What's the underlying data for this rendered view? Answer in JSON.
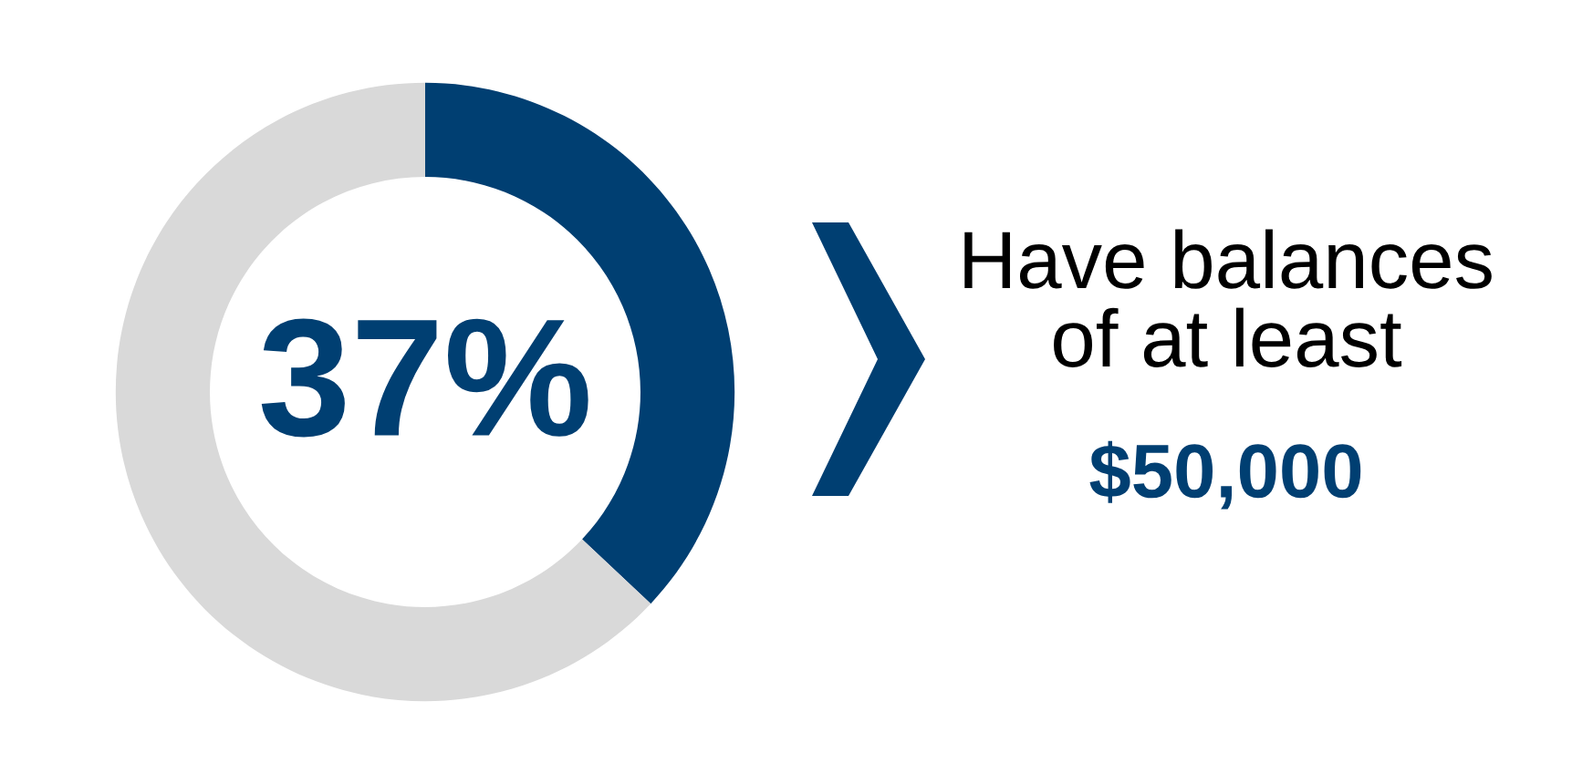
{
  "chart_data": {
    "type": "donut",
    "categories": [
      null,
      null
    ],
    "values": [
      37,
      63
    ],
    "colors": [
      "#003f72",
      "#d9d9d9"
    ],
    "value_labels": [
      "37%",
      null
    ],
    "annotations": [
      "Have balances\nof at least",
      "$50,000"
    ],
    "legend": false
  }
}
